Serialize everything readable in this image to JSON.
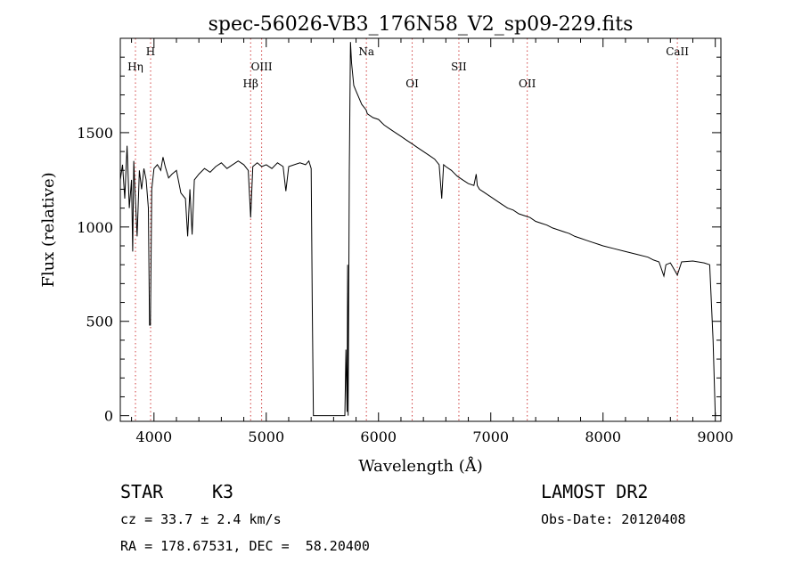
{
  "chart_data": {
    "type": "line",
    "title": "spec-56026-VB3_176N58_V2_sp09-229.fits",
    "xlabel": "Wavelength (Å)",
    "ylabel": "Flux (relative)",
    "xlim": [
      3700,
      9050
    ],
    "ylim": [
      -30,
      2000
    ],
    "x_ticks": [
      4000,
      5000,
      6000,
      7000,
      8000,
      9000
    ],
    "y_ticks": [
      0,
      500,
      1000,
      1500
    ],
    "grid": false,
    "series": [
      {
        "color": "#000000",
        "x": [
          3700,
          3720,
          3740,
          3760,
          3780,
          3800,
          3810,
          3820,
          3830,
          3850,
          3870,
          3890,
          3910,
          3930,
          3950,
          3960,
          3968,
          3980,
          4000,
          4030,
          4060,
          4080,
          4100,
          4130,
          4160,
          4200,
          4240,
          4280,
          4300,
          4320,
          4340,
          4360,
          4400,
          4450,
          4500,
          4550,
          4600,
          4650,
          4700,
          4750,
          4800,
          4840,
          4861,
          4880,
          4920,
          4960,
          5000,
          5050,
          5100,
          5150,
          5175,
          5200,
          5250,
          5300,
          5350,
          5380,
          5400,
          5410,
          5420,
          5700,
          5710,
          5720,
          5725,
          5730,
          5740,
          5750,
          5760,
          5780,
          5800,
          5850,
          5890,
          5900,
          5950,
          6000,
          6050,
          6100,
          6150,
          6200,
          6250,
          6300,
          6350,
          6400,
          6450,
          6500,
          6540,
          6563,
          6580,
          6600,
          6650,
          6700,
          6750,
          6800,
          6850,
          6870,
          6880,
          6900,
          6950,
          7000,
          7050,
          7100,
          7150,
          7200,
          7250,
          7300,
          7350,
          7400,
          7450,
          7500,
          7550,
          7600,
          7650,
          7700,
          7750,
          7800,
          7850,
          7900,
          7950,
          8000,
          8100,
          8200,
          8300,
          8400,
          8450,
          8498,
          8542,
          8560,
          8600,
          8662,
          8700,
          8800,
          8900,
          8950,
          8980,
          9000
        ],
        "y": [
          1250,
          1330,
          1150,
          1430,
          1100,
          1250,
          870,
          1350,
          1200,
          950,
          1300,
          1200,
          1310,
          1250,
          1100,
          480,
          480,
          1200,
          1310,
          1330,
          1300,
          1370,
          1320,
          1260,
          1280,
          1300,
          1180,
          1150,
          950,
          1200,
          960,
          1250,
          1280,
          1310,
          1290,
          1320,
          1340,
          1310,
          1330,
          1350,
          1330,
          1300,
          1050,
          1320,
          1340,
          1320,
          1330,
          1310,
          1340,
          1320,
          1190,
          1320,
          1330,
          1340,
          1330,
          1350,
          1310,
          600,
          0,
          0,
          350,
          20,
          800,
          0,
          1300,
          1980,
          1870,
          1750,
          1720,
          1650,
          1620,
          1600,
          1580,
          1570,
          1540,
          1520,
          1500,
          1480,
          1460,
          1440,
          1420,
          1400,
          1380,
          1360,
          1330,
          1150,
          1330,
          1320,
          1300,
          1270,
          1250,
          1230,
          1220,
          1280,
          1220,
          1200,
          1180,
          1160,
          1140,
          1120,
          1100,
          1090,
          1070,
          1060,
          1050,
          1030,
          1020,
          1010,
          995,
          985,
          975,
          965,
          950,
          940,
          930,
          920,
          910,
          900,
          885,
          870,
          855,
          840,
          825,
          815,
          740,
          800,
          810,
          745,
          815,
          820,
          810,
          800,
          400,
          0
        ]
      }
    ],
    "lines": [
      {
        "label": "Hη",
        "x": 3835,
        "label_row": 2
      },
      {
        "label": "H",
        "x": 3970,
        "label_row": 1
      },
      {
        "label": "Hβ",
        "x": 4861,
        "label_row": 3
      },
      {
        "label": "OIII",
        "x": 4959,
        "label_row": 2
      },
      {
        "label": "Na",
        "x": 5892,
        "label_row": 1
      },
      {
        "label": "OI",
        "x": 6300,
        "label_row": 3
      },
      {
        "label": "SII",
        "x": 6716,
        "label_row": 2
      },
      {
        "label": "OII",
        "x": 7325,
        "label_row": 3
      },
      {
        "label": "CaII",
        "x": 8662,
        "label_row": 1
      }
    ]
  },
  "info": {
    "class": "STAR",
    "subclass": "K3",
    "survey": "LAMOST DR2",
    "cz": "cz = 33.7 ± 2.4 km/s",
    "obs_date": "Obs-Date: 20120408",
    "coords": "RA = 178.67531, DEC =  58.20400"
  }
}
